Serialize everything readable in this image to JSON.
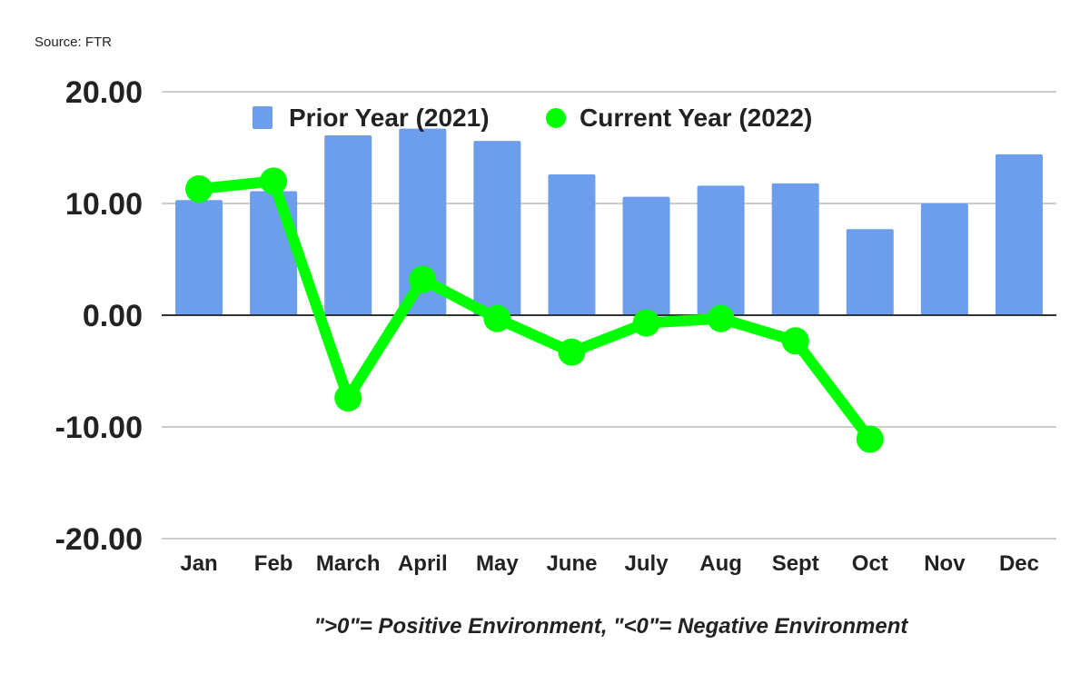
{
  "source": "Source: FTR",
  "note": "\">0\"= Positive Environment, \"<0\"= Negative Environment",
  "chart_data": {
    "type": "bar+line",
    "categories": [
      "Jan",
      "Feb",
      "March",
      "April",
      "May",
      "June",
      "July",
      "Aug",
      "Sept",
      "Oct",
      "Nov",
      "Dec"
    ],
    "series": [
      {
        "name": "Prior Year (2021)",
        "type": "bar",
        "color": "#6d9eeb",
        "values": [
          10.3,
          11.1,
          16.1,
          16.7,
          15.6,
          12.6,
          10.6,
          11.6,
          11.8,
          7.7,
          10.0,
          14.4
        ]
      },
      {
        "name": "Current Year (2022)",
        "type": "line",
        "color": "#00ff00",
        "values": [
          11.3,
          12.0,
          -7.4,
          3.2,
          -0.3,
          -3.3,
          -0.7,
          -0.3,
          -2.3,
          -11.1,
          null,
          null
        ]
      }
    ],
    "ylim": [
      -20,
      20
    ],
    "yticks": [
      20,
      10,
      0,
      -10,
      -20
    ],
    "ytick_labels": [
      "20.00",
      "10.00",
      "0.00",
      "-10.00",
      "-20.00"
    ],
    "grid": true,
    "legend_position": "top"
  }
}
